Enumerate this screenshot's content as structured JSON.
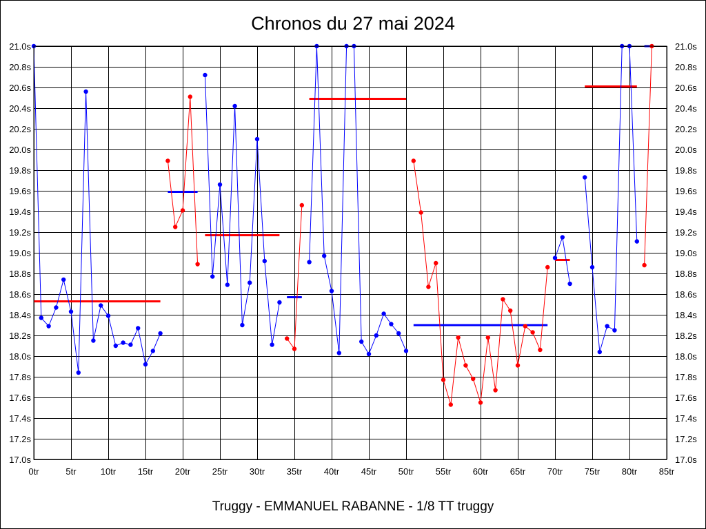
{
  "chart_data": {
    "type": "line",
    "title": "Chronos du 27 mai 2024",
    "footer": "Truggy - EMMANUEL RABANNE - 1/8 TT truggy",
    "xlim": [
      0,
      85
    ],
    "ylim": [
      17.0,
      21.0
    ],
    "x_ticks": [
      {
        "value": 0,
        "label": "0tr"
      },
      {
        "value": 5,
        "label": "5tr"
      },
      {
        "value": 10,
        "label": "10tr"
      },
      {
        "value": 15,
        "label": "15tr"
      },
      {
        "value": 20,
        "label": "20tr"
      },
      {
        "value": 25,
        "label": "25tr"
      },
      {
        "value": 30,
        "label": "30tr"
      },
      {
        "value": 35,
        "label": "35tr"
      },
      {
        "value": 40,
        "label": "40tr"
      },
      {
        "value": 45,
        "label": "45tr"
      },
      {
        "value": 50,
        "label": "50tr"
      },
      {
        "value": 55,
        "label": "55tr"
      },
      {
        "value": 60,
        "label": "60tr"
      },
      {
        "value": 65,
        "label": "65tr"
      },
      {
        "value": 70,
        "label": "70tr"
      },
      {
        "value": 75,
        "label": "75tr"
      },
      {
        "value": 80,
        "label": "80tr"
      },
      {
        "value": 85,
        "label": "85tr"
      }
    ],
    "y_ticks": [
      {
        "value": 17.0,
        "label": "17.0s"
      },
      {
        "value": 17.2,
        "label": "17.2s"
      },
      {
        "value": 17.4,
        "label": "17.4s"
      },
      {
        "value": 17.6,
        "label": "17.6s"
      },
      {
        "value": 17.8,
        "label": "17.8s"
      },
      {
        "value": 18.0,
        "label": "18.0s"
      },
      {
        "value": 18.2,
        "label": "18.2s"
      },
      {
        "value": 18.4,
        "label": "18.4s"
      },
      {
        "value": 18.6,
        "label": "18.6s"
      },
      {
        "value": 18.8,
        "label": "18.8s"
      },
      {
        "value": 19.0,
        "label": "19.0s"
      },
      {
        "value": 19.2,
        "label": "19.2s"
      },
      {
        "value": 19.4,
        "label": "19.4s"
      },
      {
        "value": 19.6,
        "label": "19.6s"
      },
      {
        "value": 19.8,
        "label": "19.8s"
      },
      {
        "value": 20.0,
        "label": "20.0s"
      },
      {
        "value": 20.2,
        "label": "20.2s"
      },
      {
        "value": 20.4,
        "label": "20.4s"
      },
      {
        "value": 20.6,
        "label": "20.6s"
      },
      {
        "value": 20.8,
        "label": "20.8s"
      },
      {
        "value": 21.0,
        "label": "21.0s"
      }
    ],
    "grid": true,
    "series": [
      {
        "color": "#0000ff",
        "x": [
          0,
          1,
          2,
          3,
          4,
          5,
          6,
          7,
          8,
          9,
          10,
          11,
          12,
          13,
          14,
          15,
          16,
          17
        ],
        "y": [
          21.0,
          18.37,
          18.29,
          18.47,
          18.74,
          18.43,
          17.84,
          20.56,
          18.15,
          18.49,
          18.39,
          18.1,
          18.13,
          18.11,
          18.27,
          17.92,
          18.05,
          18.22
        ]
      },
      {
        "color": "#ff0000",
        "x": [
          18,
          19,
          20,
          21,
          22
        ],
        "y": [
          19.89,
          19.25,
          19.41,
          20.51,
          18.89
        ]
      },
      {
        "color": "#0000ff",
        "x": [
          23,
          24,
          25,
          26,
          27,
          28,
          29,
          30,
          31,
          32,
          33
        ],
        "y": [
          20.72,
          18.77,
          19.66,
          18.69,
          20.42,
          18.3,
          18.71,
          20.1,
          18.92,
          18.11,
          18.52
        ]
      },
      {
        "color": "#ff0000",
        "x": [
          34,
          35,
          36
        ],
        "y": [
          18.17,
          18.07,
          19.46
        ]
      },
      {
        "color": "#0000ff",
        "x": [
          37,
          38,
          39,
          40,
          41,
          42,
          43,
          44,
          45,
          46,
          47,
          48,
          49,
          50
        ],
        "y": [
          18.91,
          21.0,
          18.97,
          18.63,
          18.03,
          21.0,
          21.0,
          18.14,
          18.02,
          18.2,
          18.41,
          18.31,
          18.22,
          18.05
        ]
      },
      {
        "color": "#ff0000",
        "x": [
          51,
          52,
          53,
          54,
          55,
          56,
          57,
          58,
          59,
          60,
          61,
          62,
          63,
          64,
          65,
          66,
          67,
          68,
          69
        ],
        "y": [
          19.89,
          19.39,
          18.67,
          18.9,
          17.77,
          17.53,
          18.18,
          17.91,
          17.78,
          17.55,
          18.18,
          17.67,
          18.55,
          18.44,
          17.91,
          18.29,
          18.23,
          18.06,
          18.86
        ]
      },
      {
        "color": "#0000ff",
        "x": [
          70,
          71,
          72
        ],
        "y": [
          18.95,
          19.15,
          18.7
        ]
      },
      {
        "color": "#0000ff",
        "x": [
          74,
          75,
          76,
          77,
          78,
          79,
          80,
          81
        ],
        "y": [
          19.73,
          18.86,
          18.04,
          18.29,
          18.25,
          21.0,
          21.0,
          19.11
        ]
      },
      {
        "color": "#ff0000",
        "x": [
          82,
          83
        ],
        "y": [
          18.88,
          21.0
        ]
      }
    ],
    "average_lines": [
      {
        "color": "#ff0000",
        "x_start": 0,
        "x_end": 17,
        "y": 18.53
      },
      {
        "color": "#0000ff",
        "x_start": 18,
        "x_end": 22,
        "y": 19.59
      },
      {
        "color": "#ff0000",
        "x_start": 23,
        "x_end": 33,
        "y": 19.17
      },
      {
        "color": "#0000ff",
        "x_start": 34,
        "x_end": 36,
        "y": 18.57
      },
      {
        "color": "#ff0000",
        "x_start": 37,
        "x_end": 50,
        "y": 20.49
      },
      {
        "color": "#0000ff",
        "x_start": 51,
        "x_end": 69,
        "y": 18.3
      },
      {
        "color": "#ff0000",
        "x_start": 70,
        "x_end": 72,
        "y": 18.93
      },
      {
        "color": "#ff0000",
        "x_start": 74,
        "x_end": 81,
        "y": 20.61
      },
      {
        "color": "#0000ff",
        "x_start": 82,
        "x_end": 83,
        "y": 21.0
      }
    ]
  }
}
